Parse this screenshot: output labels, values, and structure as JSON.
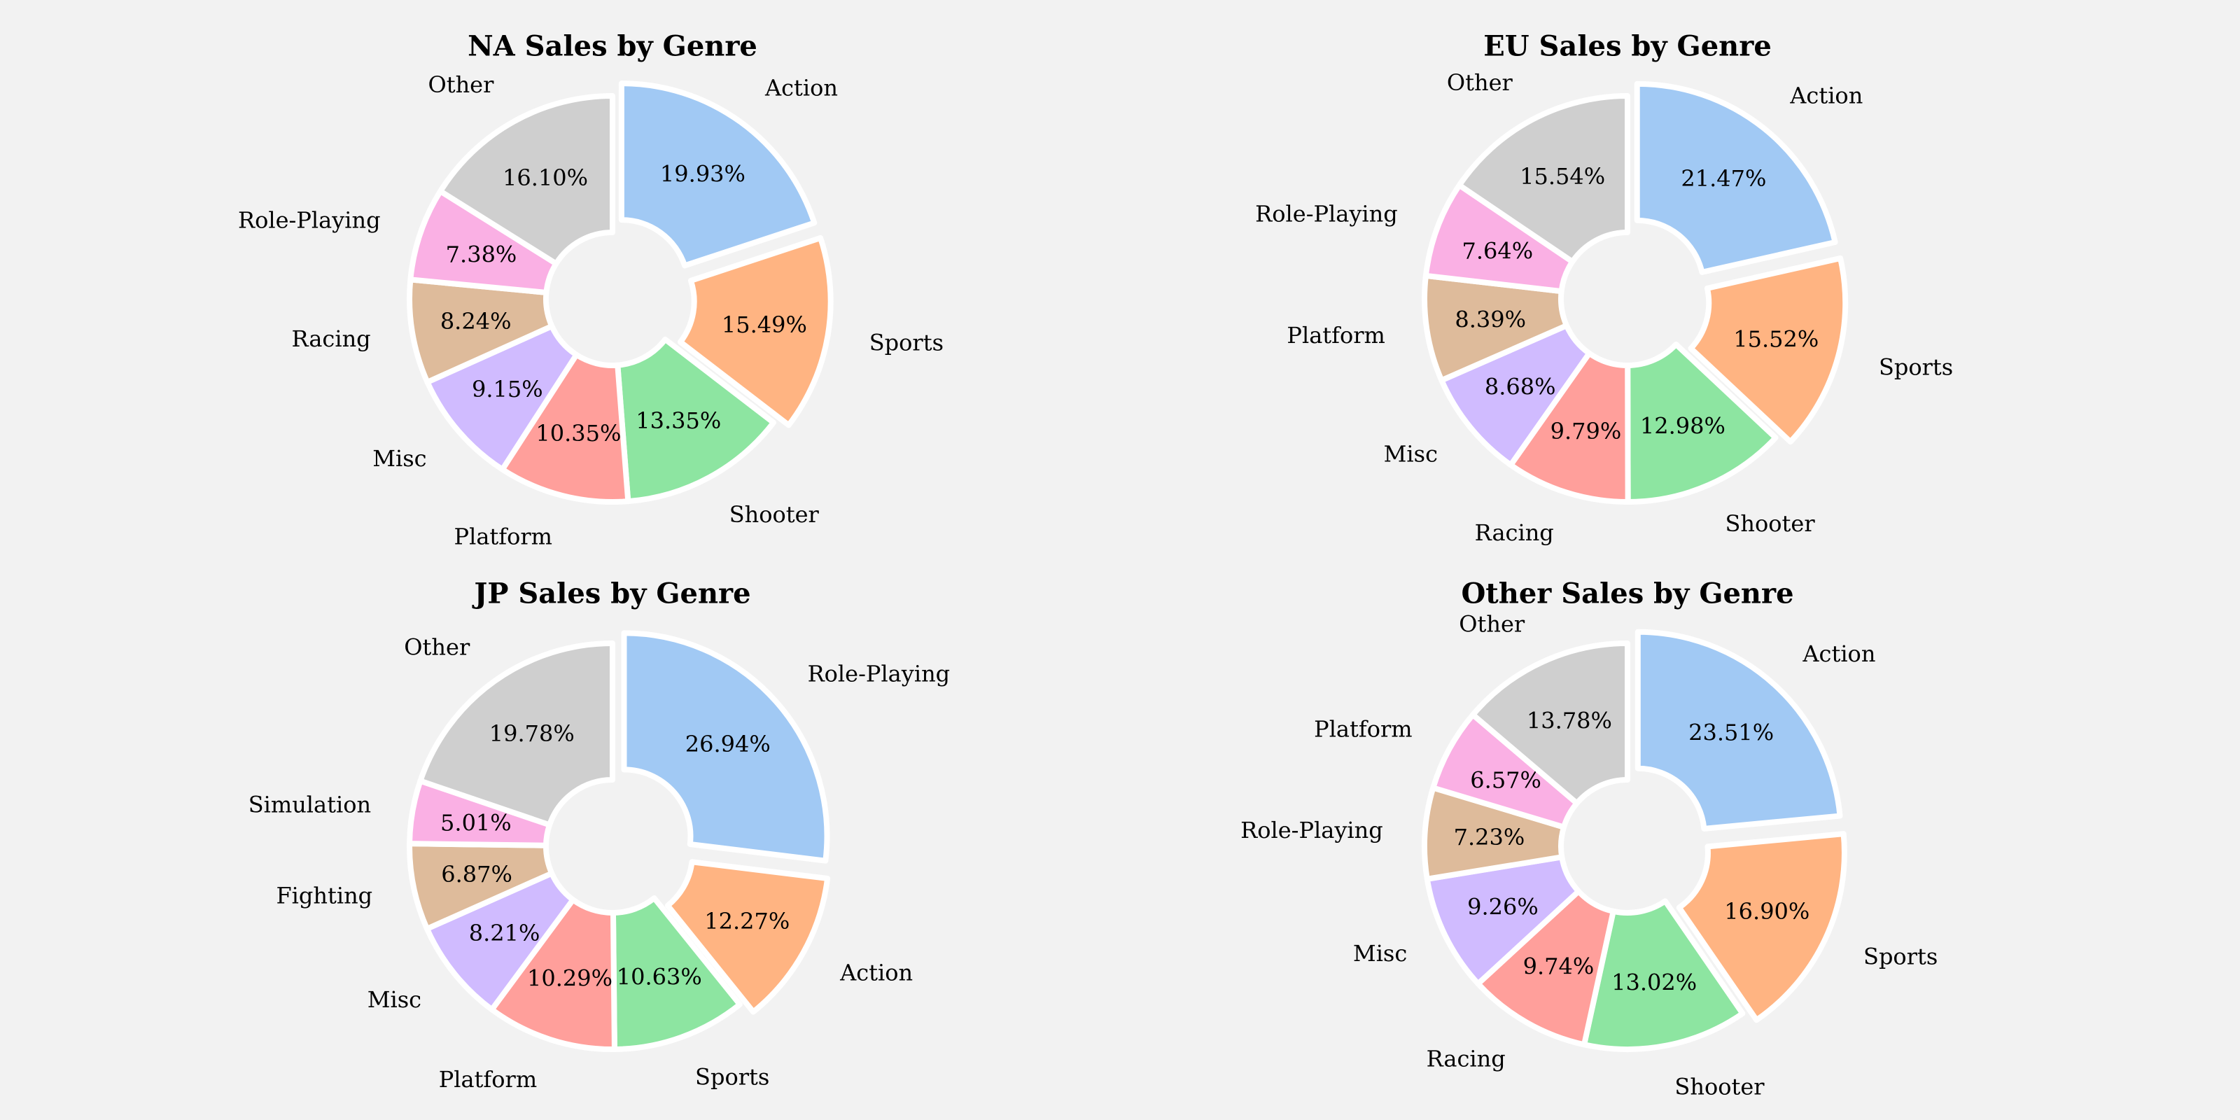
{
  "chart_data": [
    {
      "type": "pie",
      "style": "donut",
      "title": "NA Sales by Genre",
      "slices": [
        {
          "label": "Action",
          "value": 19.93,
          "pct_label": "19.93%",
          "color": "#a1c9f4",
          "exploded": true
        },
        {
          "label": "Sports",
          "value": 15.49,
          "pct_label": "15.49%",
          "color": "#ffb482",
          "exploded": true
        },
        {
          "label": "Shooter",
          "value": 13.35,
          "pct_label": "13.35%",
          "color": "#8de5a1",
          "exploded": false
        },
        {
          "label": "Platform",
          "value": 10.35,
          "pct_label": "10.35%",
          "color": "#ff9f9b",
          "exploded": false
        },
        {
          "label": "Misc",
          "value": 9.15,
          "pct_label": "9.15%",
          "color": "#d0bbff",
          "exploded": false
        },
        {
          "label": "Racing",
          "value": 8.24,
          "pct_label": "8.24%",
          "color": "#debb9b",
          "exploded": false
        },
        {
          "label": "Role-Playing",
          "value": 7.38,
          "pct_label": "7.38%",
          "color": "#fab0e4",
          "exploded": false
        },
        {
          "label": "Other",
          "value": 16.1,
          "pct_label": "16.10%",
          "color": "#cfcfcf",
          "exploded": false
        }
      ]
    },
    {
      "type": "pie",
      "style": "donut",
      "title": "EU Sales by Genre",
      "slices": [
        {
          "label": "Action",
          "value": 21.47,
          "pct_label": "21.47%",
          "color": "#a1c9f4",
          "exploded": true
        },
        {
          "label": "Sports",
          "value": 15.52,
          "pct_label": "15.52%",
          "color": "#ffb482",
          "exploded": true
        },
        {
          "label": "Shooter",
          "value": 12.98,
          "pct_label": "12.98%",
          "color": "#8de5a1",
          "exploded": false
        },
        {
          "label": "Racing",
          "value": 9.79,
          "pct_label": "9.79%",
          "color": "#ff9f9b",
          "exploded": false
        },
        {
          "label": "Misc",
          "value": 8.68,
          "pct_label": "8.68%",
          "color": "#d0bbff",
          "exploded": false
        },
        {
          "label": "Platform",
          "value": 8.39,
          "pct_label": "8.39%",
          "color": "#debb9b",
          "exploded": false
        },
        {
          "label": "Role-Playing",
          "value": 7.64,
          "pct_label": "7.64%",
          "color": "#fab0e4",
          "exploded": false
        },
        {
          "label": "Other",
          "value": 15.54,
          "pct_label": "15.54%",
          "color": "#cfcfcf",
          "exploded": false
        }
      ]
    },
    {
      "type": "pie",
      "style": "donut",
      "title": "JP Sales by Genre",
      "slices": [
        {
          "label": "Role-Playing",
          "value": 26.94,
          "pct_label": "26.94%",
          "color": "#a1c9f4",
          "exploded": true
        },
        {
          "label": "Action",
          "value": 12.27,
          "pct_label": "12.27%",
          "color": "#ffb482",
          "exploded": true
        },
        {
          "label": "Sports",
          "value": 10.63,
          "pct_label": "10.63%",
          "color": "#8de5a1",
          "exploded": false
        },
        {
          "label": "Platform",
          "value": 10.29,
          "pct_label": "10.29%",
          "color": "#ff9f9b",
          "exploded": false
        },
        {
          "label": "Misc",
          "value": 8.21,
          "pct_label": "8.21%",
          "color": "#d0bbff",
          "exploded": false
        },
        {
          "label": "Fighting",
          "value": 6.87,
          "pct_label": "6.87%",
          "color": "#debb9b",
          "exploded": false
        },
        {
          "label": "Simulation",
          "value": 5.01,
          "pct_label": "5.01%",
          "color": "#fab0e4",
          "exploded": false
        },
        {
          "label": "Other",
          "value": 19.78,
          "pct_label": "19.78%",
          "color": "#cfcfcf",
          "exploded": false
        }
      ]
    },
    {
      "type": "pie",
      "style": "donut",
      "title": "Other Sales by Genre",
      "slices": [
        {
          "label": "Action",
          "value": 23.51,
          "pct_label": "23.51%",
          "color": "#a1c9f4",
          "exploded": true
        },
        {
          "label": "Sports",
          "value": 16.9,
          "pct_label": "16.90%",
          "color": "#ffb482",
          "exploded": true
        },
        {
          "label": "Shooter",
          "value": 13.02,
          "pct_label": "13.02%",
          "color": "#8de5a1",
          "exploded": false
        },
        {
          "label": "Racing",
          "value": 9.74,
          "pct_label": "9.74%",
          "color": "#ff9f9b",
          "exploded": false
        },
        {
          "label": "Misc",
          "value": 9.26,
          "pct_label": "9.26%",
          "color": "#d0bbff",
          "exploded": false
        },
        {
          "label": "Role-Playing",
          "value": 7.23,
          "pct_label": "7.23%",
          "color": "#debb9b",
          "exploded": false
        },
        {
          "label": "Platform",
          "value": 6.57,
          "pct_label": "6.57%",
          "color": "#fab0e4",
          "exploded": false
        },
        {
          "label": "Other",
          "value": 13.78,
          "pct_label": "13.78%",
          "color": "#cfcfcf",
          "exploded": false
        }
      ]
    }
  ]
}
